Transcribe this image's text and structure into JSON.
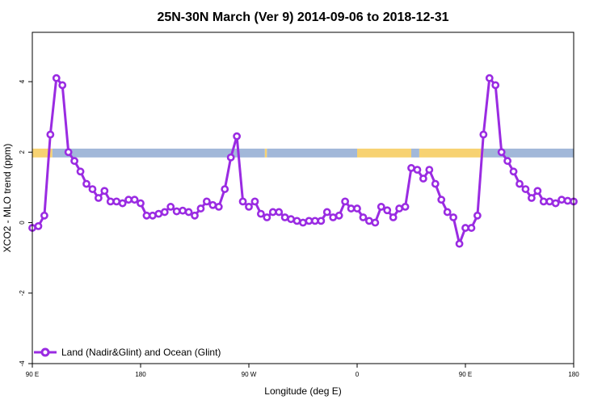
{
  "chart_data": {
    "type": "line",
    "title": "25N-30N March (Ver 9)   2014-09-06 to 2018-12-31",
    "xlabel": "Longitude (deg E)",
    "ylabel": "XCO2 - MLO trend (ppm)",
    "xlim": [
      -90,
      180
    ],
    "ylim": [
      -4.0,
      5.4
    ],
    "x_ticks": [
      {
        "value": -90,
        "label": "90 E"
      },
      {
        "value": -36,
        "label": "180"
      },
      {
        "value": 18,
        "label": "90 W"
      },
      {
        "value": 72,
        "label": "0"
      },
      {
        "value": 126,
        "label": "90 E"
      },
      {
        "value": 180,
        "label": "180"
      }
    ],
    "y_ticks": [
      {
        "value": -4,
        "label": "-4"
      },
      {
        "value": -2,
        "label": "-2"
      },
      {
        "value": 0,
        "label": "0"
      },
      {
        "value": 2,
        "label": "2"
      },
      {
        "value": 4,
        "label": "4"
      }
    ],
    "grid": false,
    "legend_position": "bottom-left",
    "series": [
      {
        "name": "Land (Nadir&Glint) and Ocean (Glint)",
        "color": "#9a2be2",
        "x": [
          -90,
          -87,
          -84,
          -81,
          -78,
          -75,
          -72,
          -69,
          -66,
          -63,
          -60,
          -57,
          -54,
          -51,
          -48,
          -45,
          -42,
          -39,
          -36,
          -33,
          -30,
          -27,
          -24,
          -21,
          -18,
          -15,
          -12,
          -9,
          -6,
          -3,
          0,
          3,
          6,
          9,
          12,
          15,
          18,
          21,
          24,
          27,
          30,
          33,
          36,
          39,
          42,
          45,
          48,
          51,
          54,
          57,
          60,
          63,
          66,
          69,
          72,
          75,
          78,
          81,
          84,
          87,
          90,
          93,
          96,
          99,
          102,
          105,
          108,
          111,
          114,
          117,
          120,
          123,
          126,
          129,
          132,
          135,
          138,
          141,
          144,
          147,
          150,
          153,
          156,
          159,
          162,
          165,
          168,
          171,
          174,
          177,
          180
        ],
        "values": [
          -0.15,
          -0.1,
          0.2,
          2.5,
          4.1,
          3.9,
          2.0,
          1.75,
          1.45,
          1.1,
          0.95,
          0.7,
          0.9,
          0.6,
          0.6,
          0.55,
          0.65,
          0.65,
          0.55,
          0.2,
          0.2,
          0.25,
          0.3,
          0.45,
          0.32,
          0.34,
          0.3,
          0.2,
          0.4,
          0.6,
          0.5,
          0.45,
          0.95,
          1.85,
          2.45,
          0.6,
          0.45,
          0.6,
          0.25,
          0.15,
          0.3,
          0.3,
          0.15,
          0.1,
          0.05,
          0.0,
          0.05,
          0.05,
          0.05,
          0.3,
          0.15,
          0.2,
          0.6,
          0.4,
          0.4,
          0.15,
          0.05,
          0.0,
          0.45,
          0.35,
          0.15,
          0.4,
          0.45,
          1.55,
          1.5,
          1.25,
          1.5,
          1.1,
          0.65,
          0.3,
          0.15,
          -0.6,
          -0.15,
          -0.15,
          0.2,
          2.5,
          4.1,
          3.9,
          2.0,
          1.75,
          1.45,
          1.1,
          0.95,
          0.7,
          0.9,
          0.6,
          0.6,
          0.55,
          0.65,
          0.62,
          0.6
        ]
      }
    ],
    "surface_band": {
      "y_range": [
        1.85,
        2.1
      ],
      "colors": {
        "land": "#f7d272",
        "ocean": "#a2b8d9"
      },
      "segments": [
        {
          "from": -90,
          "to": -80,
          "type": "land"
        },
        {
          "from": -80,
          "to": 26,
          "type": "ocean"
        },
        {
          "from": 26,
          "to": 27,
          "type": "land"
        },
        {
          "from": 27,
          "to": 72,
          "type": "ocean"
        },
        {
          "from": 72,
          "to": 99,
          "type": "land"
        },
        {
          "from": 99,
          "to": 103,
          "type": "ocean"
        },
        {
          "from": 103,
          "to": 135,
          "type": "land"
        },
        {
          "from": 135,
          "to": 180,
          "type": "ocean"
        }
      ]
    }
  }
}
